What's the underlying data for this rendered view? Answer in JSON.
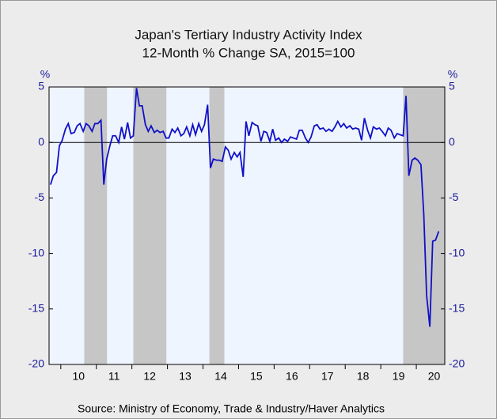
{
  "chart_data": {
    "type": "line",
    "title": "Japan's Tertiary Industry Activity Index",
    "subtitle": "12-Month % Change   SA, 2015=100",
    "y_unit": "%",
    "y2_unit": "%",
    "source": "Source:  Ministry of Economy, Trade & Industry/Haver Analytics",
    "xlim": [
      2009.67,
      2020.8
    ],
    "xticks": [
      {
        "value": 2010.5,
        "label": "10"
      },
      {
        "value": 2011.5,
        "label": "11"
      },
      {
        "value": 2012.5,
        "label": "12"
      },
      {
        "value": 2013.5,
        "label": "13"
      },
      {
        "value": 2014.5,
        "label": "14"
      },
      {
        "value": 2015.5,
        "label": "15"
      },
      {
        "value": 2016.5,
        "label": "16"
      },
      {
        "value": 2017.5,
        "label": "17"
      },
      {
        "value": 2018.5,
        "label": "18"
      },
      {
        "value": 2019.5,
        "label": "19"
      },
      {
        "value": 2020.5,
        "label": "20"
      }
    ],
    "ylim": [
      -20,
      5
    ],
    "yticks": [
      -20,
      -15,
      -10,
      -5,
      0,
      5
    ],
    "y2lim": [
      -20,
      5
    ],
    "y2ticks": [
      -20,
      -15,
      -10,
      -5,
      0,
      5
    ],
    "shading": [
      [
        2010.66,
        2011.3
      ],
      [
        2012.04,
        2012.97
      ],
      [
        2014.18,
        2014.6
      ],
      [
        2019.63,
        2020.8
      ]
    ],
    "x": [
      2009.71,
      2009.79,
      2009.88,
      2009.96,
      2010.04,
      2010.13,
      2010.21,
      2010.29,
      2010.38,
      2010.46,
      2010.54,
      2010.63,
      2010.71,
      2010.79,
      2010.88,
      2010.96,
      2011.04,
      2011.13,
      2011.21,
      2011.29,
      2011.38,
      2011.46,
      2011.54,
      2011.63,
      2011.71,
      2011.79,
      2011.88,
      2011.96,
      2012.04,
      2012.13,
      2012.21,
      2012.29,
      2012.38,
      2012.46,
      2012.54,
      2012.63,
      2012.71,
      2012.79,
      2012.88,
      2012.96,
      2013.04,
      2013.13,
      2013.21,
      2013.29,
      2013.38,
      2013.46,
      2013.54,
      2013.63,
      2013.71,
      2013.79,
      2013.88,
      2013.96,
      2014.04,
      2014.13,
      2014.21,
      2014.29,
      2014.38,
      2014.46,
      2014.54,
      2014.63,
      2014.71,
      2014.79,
      2014.88,
      2014.96,
      2015.04,
      2015.13,
      2015.21,
      2015.29,
      2015.38,
      2015.46,
      2015.54,
      2015.63,
      2015.71,
      2015.79,
      2015.88,
      2015.96,
      2016.04,
      2016.13,
      2016.21,
      2016.29,
      2016.38,
      2016.46,
      2016.54,
      2016.63,
      2016.71,
      2016.79,
      2016.88,
      2016.96,
      2017.04,
      2017.13,
      2017.21,
      2017.29,
      2017.38,
      2017.46,
      2017.54,
      2017.63,
      2017.71,
      2017.79,
      2017.88,
      2017.96,
      2018.04,
      2018.13,
      2018.21,
      2018.29,
      2018.38,
      2018.46,
      2018.54,
      2018.63,
      2018.71,
      2018.79,
      2018.88,
      2018.96,
      2019.04,
      2019.13,
      2019.21,
      2019.29,
      2019.38,
      2019.46,
      2019.54,
      2019.63,
      2019.71,
      2019.79,
      2019.88,
      2019.96,
      2020.04,
      2020.13,
      2020.21,
      2020.29,
      2020.38,
      2020.46,
      2020.54,
      2020.63
    ],
    "series": [
      {
        "name": "Tertiary Industry Activity Index",
        "color": "#1010c8",
        "values": [
          -3.8,
          -3.0,
          -2.7,
          -0.3,
          0.2,
          1.2,
          1.7,
          0.8,
          0.9,
          1.5,
          1.7,
          1.0,
          1.7,
          1.5,
          1.0,
          1.7,
          1.7,
          2.0,
          -3.8,
          -1.5,
          -0.3,
          0.6,
          0.6,
          0.0,
          1.4,
          0.3,
          1.8,
          0.4,
          0.6,
          4.9,
          3.3,
          3.3,
          1.6,
          1.0,
          1.5,
          0.9,
          1.1,
          0.9,
          1.0,
          0.4,
          0.4,
          1.2,
          0.9,
          1.3,
          0.6,
          0.8,
          1.4,
          0.6,
          1.6,
          0.7,
          1.7,
          1.0,
          1.6,
          3.4,
          -2.3,
          -1.5,
          -1.6,
          -1.6,
          -1.7,
          -0.4,
          -0.7,
          -1.5,
          -0.9,
          -1.3,
          -0.9,
          -3.1,
          1.9,
          0.6,
          1.8,
          1.6,
          1.5,
          0.1,
          1.0,
          0.9,
          0.1,
          1.2,
          0.2,
          0.4,
          0.0,
          0.3,
          0.1,
          0.5,
          0.4,
          0.3,
          1.1,
          1.1,
          0.4,
          0.0,
          0.5,
          1.5,
          1.6,
          1.2,
          1.3,
          1.0,
          1.2,
          1.0,
          1.4,
          1.9,
          1.4,
          1.7,
          1.3,
          1.5,
          1.2,
          1.3,
          1.2,
          0.2,
          2.2,
          1.1,
          0.4,
          1.4,
          1.2,
          1.3,
          1.0,
          0.6,
          1.3,
          1.1,
          0.4,
          0.8,
          0.7,
          0.6,
          4.2,
          -3.0,
          -1.6,
          -1.4,
          -1.6,
          -2.0,
          -6.5,
          -13.8,
          -16.6,
          -8.9,
          -8.8,
          -8.0
        ]
      }
    ]
  }
}
